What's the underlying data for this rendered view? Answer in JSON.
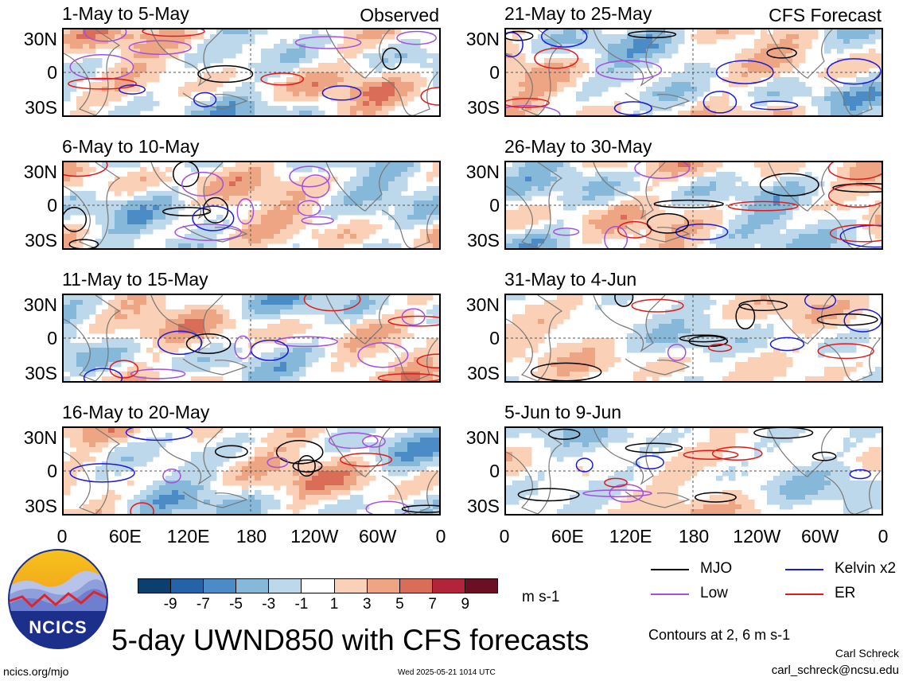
{
  "chart_data": {
    "type": "heatmap",
    "title": "5-day UWND850 with CFS forecasts",
    "units": "m s-1",
    "contours_note": "Contours at 2, 6 m s-1",
    "y_ticks": [
      "30N",
      "0",
      "30S"
    ],
    "x_ticks": [
      "0",
      "60E",
      "120E",
      "180",
      "120W",
      "60W",
      "0"
    ],
    "colorbar": {
      "ticks": [
        "-9",
        "-7",
        "-5",
        "-3",
        "-1",
        "1",
        "3",
        "5",
        "7",
        "9"
      ],
      "colors": [
        "#0b3f6e",
        "#2563a8",
        "#4b8cc6",
        "#86b8da",
        "#bcd8ea",
        "#ffffff",
        "#fad0b6",
        "#eea584",
        "#d96d57",
        "#b3233a",
        "#6b0f25"
      ]
    },
    "legend": [
      {
        "label": "MJO",
        "color": "#000000"
      },
      {
        "label": "Kelvin x2",
        "color": "#1a1adb"
      },
      {
        "label": "Low",
        "color": "#a34fe0"
      },
      {
        "label": "ER",
        "color": "#e01a1a"
      }
    ],
    "panels": [
      {
        "title": "1-May to 5-May",
        "tag": "Observed"
      },
      {
        "title": "21-May to 25-May",
        "tag": "CFS Forecast"
      },
      {
        "title": "6-May to 10-May",
        "tag": ""
      },
      {
        "title": "26-May to 30-May",
        "tag": ""
      },
      {
        "title": "11-May to 15-May",
        "tag": ""
      },
      {
        "title": "31-May to 4-Jun",
        "tag": ""
      },
      {
        "title": "16-May to 20-May",
        "tag": ""
      },
      {
        "title": "5-Jun to 9-Jun",
        "tag": ""
      }
    ]
  },
  "logo_text": "NCICS",
  "footer": {
    "left": "ncics.org/mjo",
    "center": "Wed 2025-05-21 1014 UTC",
    "author": "Carl Schreck",
    "email": "carl_schreck@ncsu.edu"
  }
}
